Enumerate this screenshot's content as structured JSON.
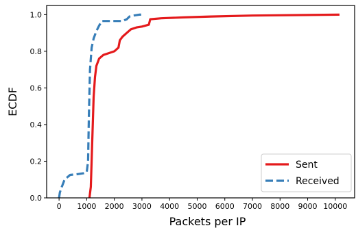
{
  "chart_data": {
    "type": "line",
    "title": "",
    "xlabel": "Packets per IP",
    "ylabel": "ECDF",
    "xlim": [
      -450,
      10700
    ],
    "ylim": [
      0,
      1.05
    ],
    "x_ticks": [
      0,
      1000,
      2000,
      3000,
      4000,
      5000,
      6000,
      7000,
      8000,
      9000,
      10000
    ],
    "x_tick_labels": [
      "0",
      "1000",
      "2000",
      "3000",
      "4000",
      "5000",
      "6000",
      "7000",
      "8000",
      "9000",
      "10000"
    ],
    "y_ticks": [
      0.0,
      0.2,
      0.4,
      0.6,
      0.8,
      1.0
    ],
    "y_tick_labels": [
      "0.0",
      "0.2",
      "0.4",
      "0.6",
      "0.8",
      "1.0"
    ],
    "grid": false,
    "legend_position": "bottom-right",
    "series": [
      {
        "name": "Sent",
        "color": "#e41a1c",
        "line_style": "solid",
        "points": [
          [
            1100,
            0.0
          ],
          [
            1150,
            0.06
          ],
          [
            1200,
            0.3
          ],
          [
            1250,
            0.55
          ],
          [
            1300,
            0.66
          ],
          [
            1350,
            0.72
          ],
          [
            1450,
            0.76
          ],
          [
            1600,
            0.78
          ],
          [
            1800,
            0.79
          ],
          [
            2000,
            0.8
          ],
          [
            2150,
            0.82
          ],
          [
            2200,
            0.86
          ],
          [
            2300,
            0.88
          ],
          [
            2450,
            0.9
          ],
          [
            2600,
            0.92
          ],
          [
            2800,
            0.93
          ],
          [
            3000,
            0.935
          ],
          [
            3250,
            0.945
          ],
          [
            3300,
            0.975
          ],
          [
            3700,
            0.98
          ],
          [
            4500,
            0.985
          ],
          [
            5500,
            0.99
          ],
          [
            7000,
            0.995
          ],
          [
            9000,
            0.998
          ],
          [
            10150,
            1.0
          ]
        ]
      },
      {
        "name": "Received",
        "color": "#377eb8",
        "line_style": "dashed",
        "points": [
          [
            0,
            0.0
          ],
          [
            30,
            0.03
          ],
          [
            100,
            0.06
          ],
          [
            200,
            0.1
          ],
          [
            400,
            0.125
          ],
          [
            700,
            0.13
          ],
          [
            900,
            0.135
          ],
          [
            1000,
            0.14
          ],
          [
            1050,
            0.2
          ],
          [
            1080,
            0.45
          ],
          [
            1120,
            0.7
          ],
          [
            1180,
            0.82
          ],
          [
            1250,
            0.87
          ],
          [
            1350,
            0.91
          ],
          [
            1450,
            0.94
          ],
          [
            1550,
            0.965
          ],
          [
            2300,
            0.965
          ],
          [
            2450,
            0.975
          ],
          [
            2550,
            0.99
          ],
          [
            2700,
            0.995
          ],
          [
            2900,
            1.0
          ],
          [
            3000,
            1.0
          ]
        ]
      }
    ]
  }
}
